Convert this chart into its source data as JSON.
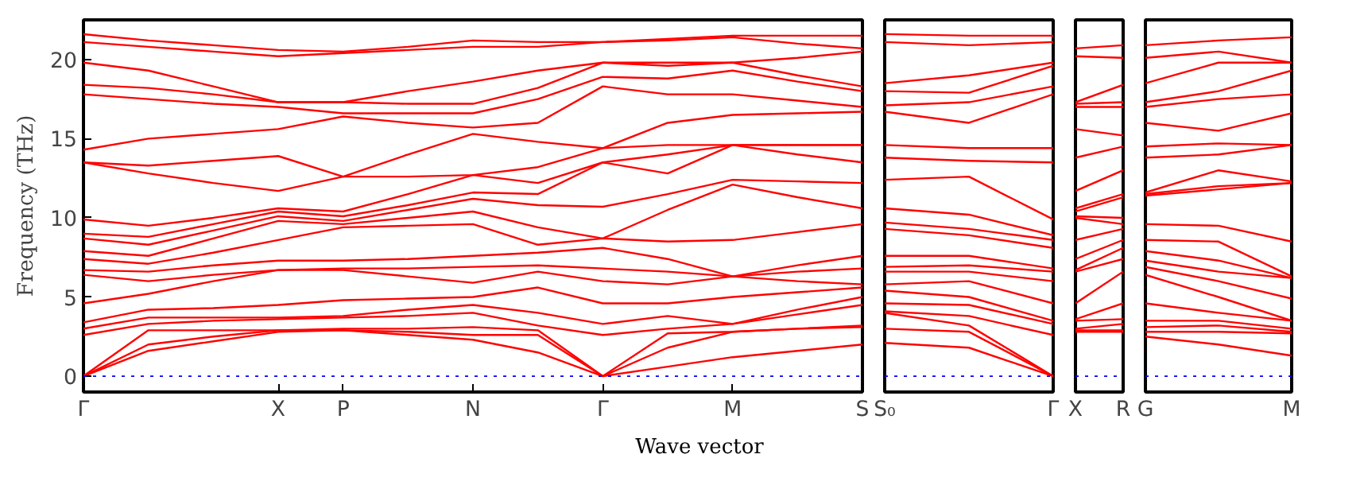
{
  "chart_data": [
    {
      "type": "line",
      "ylabel": "Frequency (THz)",
      "xlabel": "Wave vector",
      "categories": [
        "Γ",
        null,
        null,
        "X",
        "P",
        null,
        "N",
        null,
        "Γ",
        null,
        "M",
        null,
        "S"
      ],
      "ylim": [
        -1,
        22.5
      ],
      "yticks": [
        0,
        5,
        10,
        15,
        20
      ],
      "grid": false,
      "line_style": "solid",
      "ref_lines": [
        {
          "axis": "y",
          "value": 0,
          "color": "#0000ff",
          "line_style": "dotted"
        }
      ],
      "series": [
        {
          "color": "#ff0000",
          "values": [
            0,
            1.6,
            2.2,
            2.8,
            2.9,
            2.6,
            2.3,
            1.5,
            0,
            0.6,
            1.2,
            1.6,
            2.0
          ]
        },
        {
          "color": "#ff0000",
          "values": [
            0,
            2.0,
            2.5,
            2.9,
            2.9,
            2.8,
            2.6,
            2.6,
            0,
            1.8,
            2.8,
            3.0,
            3.1
          ]
        },
        {
          "color": "#ff0000",
          "values": [
            0,
            2.9,
            2.9,
            2.9,
            3.0,
            3.0,
            3.1,
            2.9,
            0,
            2.7,
            2.8,
            3.0,
            3.2
          ]
        },
        {
          "color": "#ff0000",
          "values": [
            2.6,
            3.3,
            3.5,
            3.6,
            3.7,
            3.8,
            4.0,
            3.2,
            2.6,
            3.0,
            3.3,
            3.9,
            4.5
          ]
        },
        {
          "color": "#ff0000",
          "values": [
            3.0,
            3.7,
            3.7,
            3.7,
            3.8,
            4.2,
            4.5,
            4.0,
            3.3,
            3.8,
            3.3,
            4.2,
            5.0
          ]
        },
        {
          "color": "#ff0000",
          "values": [
            3.4,
            4.2,
            4.3,
            4.5,
            4.8,
            4.9,
            5.0,
            5.6,
            4.6,
            4.6,
            5.0,
            5.3,
            5.6
          ]
        },
        {
          "color": "#ff0000",
          "values": [
            4.6,
            5.2,
            6.0,
            6.7,
            6.7,
            6.3,
            5.9,
            6.6,
            6.0,
            5.8,
            6.3,
            6.0,
            5.8
          ]
        },
        {
          "color": "#ff0000",
          "values": [
            6.4,
            6.0,
            6.4,
            6.7,
            6.8,
            6.8,
            6.9,
            7.0,
            6.8,
            6.6,
            6.3,
            6.6,
            6.8
          ]
        },
        {
          "color": "#ff0000",
          "values": [
            6.7,
            6.6,
            7.0,
            7.3,
            7.3,
            7.4,
            7.6,
            7.8,
            8.1,
            7.4,
            6.3,
            7.0,
            7.6
          ]
        },
        {
          "color": "#ff0000",
          "values": [
            7.4,
            7.1,
            7.8,
            8.6,
            9.4,
            9.5,
            9.6,
            8.3,
            8.7,
            8.5,
            8.6,
            9.1,
            9.6
          ]
        },
        {
          "color": "#ff0000",
          "values": [
            7.9,
            7.6,
            8.7,
            9.8,
            9.6,
            10.0,
            10.4,
            9.4,
            8.7,
            10.5,
            12.1,
            11.3,
            10.6
          ]
        },
        {
          "color": "#ff0000",
          "values": [
            8.7,
            8.3,
            9.2,
            10.1,
            9.8,
            10.5,
            11.2,
            10.8,
            10.7,
            11.5,
            12.4,
            12.3,
            12.2
          ]
        },
        {
          "color": "#ff0000",
          "values": [
            9.0,
            8.8,
            9.6,
            10.4,
            10.1,
            10.8,
            11.6,
            11.5,
            13.5,
            12.8,
            14.6,
            14.0,
            13.5
          ]
        },
        {
          "color": "#ff0000",
          "values": [
            9.9,
            9.5,
            10.0,
            10.6,
            10.4,
            11.5,
            12.7,
            12.2,
            13.5,
            14.0,
            14.6,
            14.6,
            14.6
          ]
        },
        {
          "color": "#ff0000",
          "values": [
            13.5,
            12.8,
            12.2,
            11.7,
            12.6,
            12.6,
            12.7,
            13.2,
            14.4,
            14.6,
            14.6,
            14.6,
            14.6
          ]
        },
        {
          "color": "#ff0000",
          "values": [
            13.5,
            13.3,
            13.6,
            13.9,
            12.6,
            14.0,
            15.3,
            14.8,
            14.4,
            16.0,
            16.5,
            16.6,
            16.7
          ]
        },
        {
          "color": "#ff0000",
          "values": [
            14.3,
            15.0,
            15.3,
            15.6,
            16.4,
            16.0,
            15.7,
            16.0,
            18.3,
            17.8,
            17.8,
            17.4,
            17.0
          ]
        },
        {
          "color": "#ff0000",
          "values": [
            17.8,
            17.5,
            17.2,
            17.0,
            16.6,
            16.6,
            16.6,
            17.5,
            18.9,
            18.8,
            19.3,
            18.6,
            18.0
          ]
        },
        {
          "color": "#ff0000",
          "values": [
            18.4,
            18.2,
            17.8,
            17.3,
            17.3,
            17.2,
            17.2,
            18.2,
            19.8,
            19.6,
            19.8,
            19.0,
            18.3
          ]
        },
        {
          "color": "#ff0000",
          "values": [
            19.8,
            19.3,
            18.3,
            17.3,
            17.3,
            18.0,
            18.6,
            19.3,
            19.8,
            19.8,
            19.8,
            20.1,
            20.5
          ]
        },
        {
          "color": "#ff0000",
          "values": [
            21.1,
            20.8,
            20.5,
            20.2,
            20.4,
            20.6,
            20.8,
            20.8,
            21.1,
            21.2,
            21.4,
            21.0,
            20.7
          ]
        },
        {
          "color": "#ff0000",
          "values": [
            21.6,
            21.2,
            20.9,
            20.6,
            20.5,
            20.8,
            21.2,
            21.1,
            21.1,
            21.3,
            21.5,
            21.5,
            21.5
          ]
        }
      ]
    },
    {
      "type": "line",
      "categories": [
        "S₀",
        null,
        "Γ"
      ],
      "ylim": [
        -1,
        22.5
      ],
      "yticks": [
        0,
        5,
        10,
        15,
        20
      ],
      "tick_labels": "x",
      "grid": false,
      "line_style": "solid",
      "ref_lines": [
        {
          "axis": "y",
          "value": 0,
          "color": "#0000ff",
          "line_style": "dotted"
        }
      ],
      "series": [
        {
          "color": "#ff0000",
          "values": [
            2.1,
            1.8,
            0
          ]
        },
        {
          "color": "#ff0000",
          "values": [
            3.0,
            2.8,
            0
          ]
        },
        {
          "color": "#ff0000",
          "values": [
            4.0,
            3.2,
            0
          ]
        },
        {
          "color": "#ff0000",
          "values": [
            4.1,
            3.8,
            2.6
          ]
        },
        {
          "color": "#ff0000",
          "values": [
            4.6,
            4.5,
            3.3
          ]
        },
        {
          "color": "#ff0000",
          "values": [
            5.4,
            5.0,
            3.5
          ]
        },
        {
          "color": "#ff0000",
          "values": [
            5.8,
            6.0,
            4.6
          ]
        },
        {
          "color": "#ff0000",
          "values": [
            6.6,
            6.6,
            6.0
          ]
        },
        {
          "color": "#ff0000",
          "values": [
            6.9,
            7.0,
            6.6
          ]
        },
        {
          "color": "#ff0000",
          "values": [
            7.6,
            7.6,
            6.8
          ]
        },
        {
          "color": "#ff0000",
          "values": [
            9.3,
            8.9,
            8.1
          ]
        },
        {
          "color": "#ff0000",
          "values": [
            9.7,
            9.3,
            8.6
          ]
        },
        {
          "color": "#ff0000",
          "values": [
            10.6,
            10.2,
            8.9
          ]
        },
        {
          "color": "#ff0000",
          "values": [
            12.4,
            12.6,
            9.9
          ]
        },
        {
          "color": "#ff0000",
          "values": [
            13.8,
            13.6,
            13.5
          ]
        },
        {
          "color": "#ff0000",
          "values": [
            14.6,
            14.4,
            14.4
          ]
        },
        {
          "color": "#ff0000",
          "values": [
            16.7,
            16.0,
            17.8
          ]
        },
        {
          "color": "#ff0000",
          "values": [
            17.1,
            17.3,
            18.3
          ]
        },
        {
          "color": "#ff0000",
          "values": [
            18.0,
            17.9,
            19.6
          ]
        },
        {
          "color": "#ff0000",
          "values": [
            18.5,
            19.0,
            19.8
          ]
        },
        {
          "color": "#ff0000",
          "values": [
            21.1,
            20.9,
            21.1
          ]
        },
        {
          "color": "#ff0000",
          "values": [
            21.6,
            21.5,
            21.5
          ]
        }
      ]
    },
    {
      "type": "line",
      "categories": [
        "X",
        "R"
      ],
      "ylim": [
        -1,
        22.5
      ],
      "yticks": [
        0,
        5,
        10,
        15,
        20
      ],
      "tick_labels": "x",
      "grid": false,
      "line_style": "solid",
      "ref_lines": [
        {
          "axis": "y",
          "value": 0,
          "color": "#0000ff",
          "line_style": "dotted"
        }
      ],
      "series": [
        {
          "color": "#ff0000",
          "values": [
            2.8,
            2.8
          ]
        },
        {
          "color": "#ff0000",
          "values": [
            2.9,
            2.9
          ]
        },
        {
          "color": "#ff0000",
          "values": [
            3.0,
            3.3
          ]
        },
        {
          "color": "#ff0000",
          "values": [
            3.5,
            3.6
          ]
        },
        {
          "color": "#ff0000",
          "values": [
            3.6,
            4.6
          ]
        },
        {
          "color": "#ff0000",
          "values": [
            4.6,
            6.6
          ]
        },
        {
          "color": "#ff0000",
          "values": [
            6.6,
            7.4
          ]
        },
        {
          "color": "#ff0000",
          "values": [
            6.7,
            8.1
          ]
        },
        {
          "color": "#ff0000",
          "values": [
            7.4,
            8.6
          ]
        },
        {
          "color": "#ff0000",
          "values": [
            8.6,
            9.3
          ]
        },
        {
          "color": "#ff0000",
          "values": [
            10.0,
            9.6
          ]
        },
        {
          "color": "#ff0000",
          "values": [
            10.1,
            10.0
          ]
        },
        {
          "color": "#ff0000",
          "values": [
            10.4,
            11.3
          ]
        },
        {
          "color": "#ff0000",
          "values": [
            10.6,
            11.5
          ]
        },
        {
          "color": "#ff0000",
          "values": [
            11.7,
            13.0
          ]
        },
        {
          "color": "#ff0000",
          "values": [
            13.8,
            14.5
          ]
        },
        {
          "color": "#ff0000",
          "values": [
            15.6,
            15.2
          ]
        },
        {
          "color": "#ff0000",
          "values": [
            17.0,
            17.0
          ]
        },
        {
          "color": "#ff0000",
          "values": [
            17.2,
            17.3
          ]
        },
        {
          "color": "#ff0000",
          "values": [
            17.3,
            18.4
          ]
        },
        {
          "color": "#ff0000",
          "values": [
            20.2,
            20.1
          ]
        },
        {
          "color": "#ff0000",
          "values": [
            20.7,
            20.9
          ]
        }
      ]
    },
    {
      "type": "line",
      "categories": [
        "G",
        null,
        "M"
      ],
      "ylim": [
        -1,
        22.5
      ],
      "yticks": [
        0,
        5,
        10,
        15,
        20
      ],
      "tick_labels": "x",
      "grid": false,
      "line_style": "solid",
      "ref_lines": [
        {
          "axis": "y",
          "value": 0,
          "color": "#0000ff",
          "line_style": "dotted"
        }
      ],
      "series": [
        {
          "color": "#ff0000",
          "values": [
            2.5,
            2.0,
            1.3
          ]
        },
        {
          "color": "#ff0000",
          "values": [
            2.8,
            2.8,
            2.7
          ]
        },
        {
          "color": "#ff0000",
          "values": [
            3.1,
            3.2,
            2.8
          ]
        },
        {
          "color": "#ff0000",
          "values": [
            3.5,
            3.5,
            3.0
          ]
        },
        {
          "color": "#ff0000",
          "values": [
            4.6,
            4.0,
            3.5
          ]
        },
        {
          "color": "#ff0000",
          "values": [
            6.4,
            5.0,
            3.5
          ]
        },
        {
          "color": "#ff0000",
          "values": [
            6.9,
            6.0,
            4.9
          ]
        },
        {
          "color": "#ff0000",
          "values": [
            7.3,
            6.6,
            6.2
          ]
        },
        {
          "color": "#ff0000",
          "values": [
            7.9,
            7.3,
            6.2
          ]
        },
        {
          "color": "#ff0000",
          "values": [
            8.6,
            8.5,
            6.3
          ]
        },
        {
          "color": "#ff0000",
          "values": [
            9.6,
            9.5,
            8.5
          ]
        },
        {
          "color": "#ff0000",
          "values": [
            11.4,
            11.8,
            12.2
          ]
        },
        {
          "color": "#ff0000",
          "values": [
            11.5,
            12.0,
            12.2
          ]
        },
        {
          "color": "#ff0000",
          "values": [
            11.6,
            13.0,
            12.3
          ]
        },
        {
          "color": "#ff0000",
          "values": [
            13.8,
            14.0,
            14.6
          ]
        },
        {
          "color": "#ff0000",
          "values": [
            14.5,
            14.7,
            14.6
          ]
        },
        {
          "color": "#ff0000",
          "values": [
            16.0,
            15.5,
            16.6
          ]
        },
        {
          "color": "#ff0000",
          "values": [
            17.0,
            17.5,
            17.8
          ]
        },
        {
          "color": "#ff0000",
          "values": [
            17.3,
            18.0,
            19.3
          ]
        },
        {
          "color": "#ff0000",
          "values": [
            18.5,
            19.8,
            19.8
          ]
        },
        {
          "color": "#ff0000",
          "values": [
            20.1,
            20.5,
            19.8
          ]
        },
        {
          "color": "#ff0000",
          "values": [
            20.9,
            21.2,
            21.4
          ]
        }
      ]
    }
  ]
}
